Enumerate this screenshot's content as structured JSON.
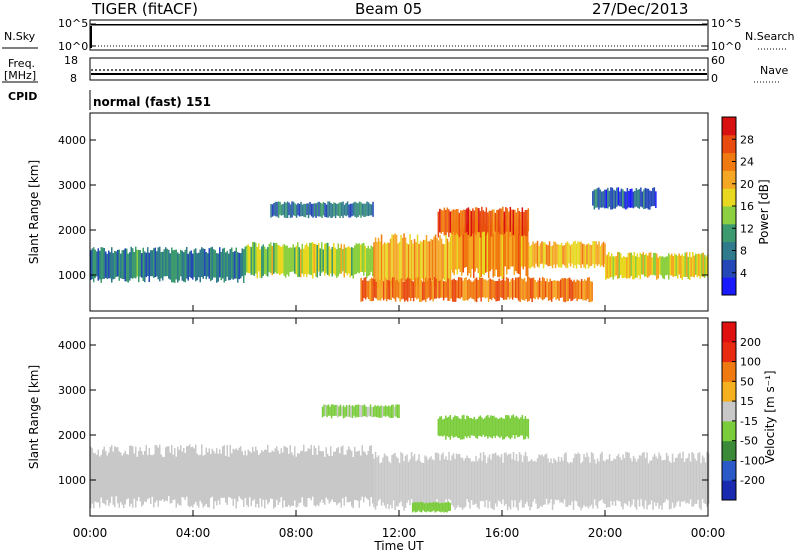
{
  "header": {
    "title": "TIGER (fitACF)",
    "beam": "Beam 05",
    "date": "27/Dec/2013"
  },
  "top_panels": {
    "nsky": {
      "label": "N.Sky",
      "ticks": [
        "10^5",
        "10^0"
      ]
    },
    "nsearch": {
      "label": "N.Search",
      "ticks": [
        "10^5",
        "10^0"
      ]
    },
    "freq": {
      "label_line1": "Freq.",
      "label_line2": "[MHz]",
      "ticks": [
        "18",
        "8"
      ]
    },
    "nave": {
      "label": "Nave",
      "ticks": [
        "60",
        "0"
      ]
    },
    "cpid": {
      "label": "CPID",
      "value": "normal (fast) 151"
    }
  },
  "chart_data": [
    {
      "type": "heatmap",
      "name": "power",
      "ylabel": "Slant Range [km]",
      "xlabel": "",
      "ylim": [
        200,
        4600
      ],
      "yticks": [
        1000,
        2000,
        3000,
        4000
      ],
      "xlim": [
        0,
        24
      ],
      "colorbar": {
        "label": "Power [dB]",
        "ticks": [
          4,
          8,
          12,
          16,
          20,
          24,
          28
        ],
        "range": [
          0,
          32
        ],
        "colors": [
          "#1a1aff",
          "#2448b8",
          "#2f7a8c",
          "#3c9a6e",
          "#8ccf40",
          "#e8d820",
          "#f5a623",
          "#f07a10",
          "#e84a10",
          "#d81010"
        ]
      },
      "bands": [
        {
          "t": [
            0,
            6
          ],
          "r": [
            900,
            1550
          ],
          "level": 9
        },
        {
          "t": [
            6,
            11
          ],
          "r": [
            1000,
            1650
          ],
          "level": 16
        },
        {
          "t": [
            11,
            14
          ],
          "r": [
            800,
            1800
          ],
          "level": 20
        },
        {
          "t": [
            14,
            17
          ],
          "r": [
            1050,
            2200
          ],
          "level": 22
        },
        {
          "t": [
            17,
            20
          ],
          "r": [
            1200,
            1700
          ],
          "level": 20
        },
        {
          "t": [
            20,
            24
          ],
          "r": [
            950,
            1450
          ],
          "level": 18
        },
        {
          "t": [
            13.5,
            17
          ],
          "r": [
            1900,
            2450
          ],
          "level": 26
        },
        {
          "t": [
            10.5,
            19.5
          ],
          "r": [
            450,
            900
          ],
          "level": 24
        },
        {
          "t": [
            7,
            11
          ],
          "r": [
            2300,
            2600
          ],
          "level": 8
        },
        {
          "t": [
            19.5,
            22
          ],
          "r": [
            2500,
            2900
          ],
          "level": 6
        }
      ]
    },
    {
      "type": "heatmap",
      "name": "velocity",
      "ylabel": "Slant Range [km]",
      "xlabel": "Time UT",
      "xticks": [
        "00:00",
        "04:00",
        "08:00",
        "12:00",
        "16:00",
        "20:00",
        "00:00"
      ],
      "xlim": [
        0,
        24
      ],
      "ylim": [
        200,
        4600
      ],
      "yticks": [
        1000,
        2000,
        3000,
        4000
      ],
      "colorbar": {
        "label": "Velocity [m s⁻¹]",
        "ticks": [
          "200",
          "100",
          "50",
          "15",
          "-15",
          "-50",
          "-100",
          "-200"
        ],
        "range": [
          -250,
          250
        ],
        "colors": [
          "#1a2ab0",
          "#2a5ac8",
          "#3a8a3a",
          "#7acc3a",
          "#c8c8c8",
          "#f5b020",
          "#f07a10",
          "#e82a10",
          "#e01010"
        ]
      },
      "bands": [
        {
          "t": [
            0,
            11
          ],
          "r": [
            500,
            1650
          ],
          "level": 0
        },
        {
          "t": [
            11,
            24
          ],
          "r": [
            450,
            1500
          ],
          "level": 0
        },
        {
          "t": [
            13.5,
            17
          ],
          "r": [
            1950,
            2400
          ],
          "level": -60
        },
        {
          "t": [
            9,
            12
          ],
          "r": [
            2400,
            2650
          ],
          "level": -40
        },
        {
          "t": [
            12.5,
            14
          ],
          "r": [
            300,
            500
          ],
          "level": -50
        }
      ]
    }
  ]
}
